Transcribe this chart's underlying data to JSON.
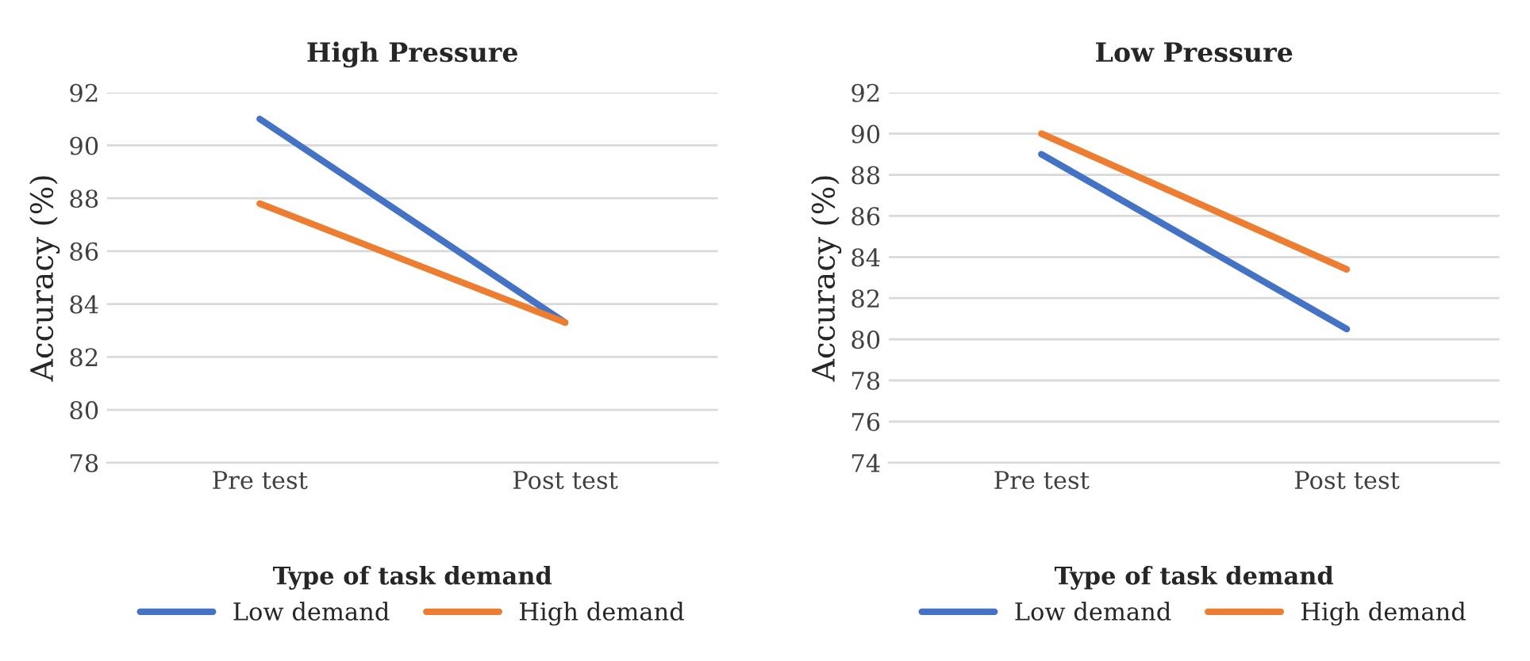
{
  "chart_data": [
    {
      "type": "line",
      "title": "High Pressure",
      "ylabel": "Accuracy (%)",
      "categories": [
        "Pre test",
        "Post test"
      ],
      "legend_title": "Type of task demand",
      "legend": "bottom",
      "grid": "y",
      "ylim": [
        78,
        92
      ],
      "yticks": [
        78,
        80,
        82,
        84,
        86,
        88,
        90,
        92
      ],
      "series": [
        {
          "name": "Low demand",
          "color": "#4472c4",
          "values": [
            91,
            83.3
          ]
        },
        {
          "name": "High demand",
          "color": "#ed7d31",
          "values": [
            87.8,
            83.3
          ]
        }
      ]
    },
    {
      "type": "line",
      "title": "Low Pressure",
      "ylabel": "Accuracy (%)",
      "categories": [
        "Pre test",
        "Post test"
      ],
      "legend_title": "Type of task demand",
      "legend": "bottom",
      "grid": "y",
      "ylim": [
        74,
        92
      ],
      "yticks": [
        74,
        76,
        78,
        80,
        82,
        84,
        86,
        88,
        90,
        92
      ],
      "series": [
        {
          "name": "Low demand",
          "color": "#4472c4",
          "values": [
            89,
            80.5
          ]
        },
        {
          "name": "High demand",
          "color": "#ed7d31",
          "values": [
            90,
            83.4
          ]
        }
      ]
    }
  ]
}
